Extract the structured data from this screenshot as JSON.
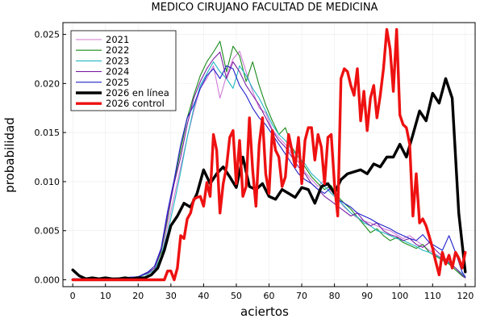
{
  "chart_data": {
    "type": "line",
    "title": "MEDICO CIRUJANO  FACULTAD DE MEDICINA",
    "xlabel": "aciertos",
    "ylabel": "probabilidad",
    "xlim": [
      -3,
      123
    ],
    "ylim": [
      -0.0007,
      0.0262
    ],
    "xticks": [
      0,
      10,
      20,
      30,
      40,
      50,
      60,
      70,
      80,
      90,
      100,
      110,
      120
    ],
    "yticks": [
      0.0,
      0.005,
      0.01,
      0.015,
      0.02,
      0.025
    ],
    "ytick_labels": [
      "0.000",
      "0.005",
      "0.010",
      "0.015",
      "0.020",
      "0.025"
    ],
    "grid": true,
    "legend_position": "top-left",
    "series": [
      {
        "name": "2021",
        "color": "#d07ad6",
        "width": 1.1,
        "x": [
          0,
          5,
          10,
          15,
          20,
          23,
          25,
          27,
          29,
          31,
          33,
          35,
          37,
          39,
          41,
          43,
          45,
          47,
          49,
          51,
          53,
          55,
          57,
          59,
          61,
          63,
          65,
          67,
          69,
          71,
          73,
          75,
          77,
          79,
          81,
          83,
          85,
          87,
          89,
          91,
          93,
          95,
          97,
          99,
          101,
          103,
          105,
          107,
          109,
          111,
          113,
          115,
          117,
          119,
          120
        ],
        "y": [
          0.0001,
          0.0001,
          0.0001,
          0.0002,
          0.0003,
          0.0006,
          0.001,
          0.0022,
          0.0055,
          0.0085,
          0.0115,
          0.0145,
          0.0172,
          0.0195,
          0.0205,
          0.0218,
          0.0185,
          0.0208,
          0.0225,
          0.0233,
          0.0212,
          0.0192,
          0.0175,
          0.017,
          0.0153,
          0.0145,
          0.0138,
          0.0128,
          0.012,
          0.011,
          0.0102,
          0.0095,
          0.0102,
          0.0088,
          0.0082,
          0.0074,
          0.0068,
          0.0063,
          0.006,
          0.0058,
          0.0055,
          0.0052,
          0.005,
          0.0046,
          0.0042,
          0.0045,
          0.004,
          0.0035,
          0.003,
          0.0026,
          0.0022,
          0.0018,
          0.0012,
          0.0006,
          0.0003
        ]
      },
      {
        "name": "2022",
        "color": "#1a8a1a",
        "width": 1.1,
        "x": [
          0,
          5,
          10,
          15,
          20,
          23,
          25,
          27,
          29,
          31,
          33,
          35,
          37,
          39,
          41,
          43,
          45,
          47,
          49,
          51,
          53,
          55,
          57,
          59,
          61,
          63,
          65,
          67,
          69,
          71,
          73,
          75,
          77,
          79,
          81,
          83,
          85,
          87,
          89,
          91,
          93,
          95,
          97,
          99,
          101,
          103,
          105,
          107,
          109,
          111,
          113,
          115,
          117,
          119,
          120
        ],
        "y": [
          0.0001,
          0.0001,
          0.0001,
          0.0002,
          0.0003,
          0.0007,
          0.0012,
          0.0028,
          0.0062,
          0.01,
          0.0132,
          0.0165,
          0.0188,
          0.0208,
          0.0222,
          0.0232,
          0.0243,
          0.0212,
          0.0238,
          0.0228,
          0.0202,
          0.0222,
          0.0198,
          0.0178,
          0.0162,
          0.0148,
          0.0155,
          0.0135,
          0.0125,
          0.0115,
          0.0105,
          0.0098,
          0.0092,
          0.0096,
          0.0085,
          0.0078,
          0.0072,
          0.0064,
          0.0056,
          0.0048,
          0.0052,
          0.0045,
          0.004,
          0.0043,
          0.0038,
          0.0035,
          0.0032,
          0.0036,
          0.0028,
          0.0024,
          0.002,
          0.0016,
          0.001,
          0.0004,
          0.0002
        ]
      },
      {
        "name": "2023",
        "color": "#22b7c2",
        "width": 1.1,
        "x": [
          0,
          5,
          10,
          15,
          20,
          23,
          25,
          27,
          29,
          31,
          33,
          35,
          37,
          39,
          41,
          43,
          45,
          47,
          49,
          51,
          53,
          55,
          57,
          59,
          61,
          63,
          65,
          67,
          69,
          71,
          73,
          75,
          77,
          79,
          81,
          83,
          85,
          87,
          89,
          91,
          93,
          95,
          97,
          99,
          101,
          103,
          105,
          107,
          109,
          111,
          113,
          115,
          117,
          119,
          120
        ],
        "y": [
          0.0001,
          0.0001,
          0.0001,
          0.0002,
          0.0003,
          0.0006,
          0.001,
          0.0024,
          0.0048,
          0.0078,
          0.011,
          0.0145,
          0.0175,
          0.0198,
          0.021,
          0.0222,
          0.0212,
          0.0205,
          0.0195,
          0.0218,
          0.0208,
          0.0195,
          0.0185,
          0.0172,
          0.0158,
          0.0148,
          0.0142,
          0.0132,
          0.0125,
          0.0118,
          0.0108,
          0.0102,
          0.0095,
          0.0088,
          0.0082,
          0.0075,
          0.0068,
          0.0064,
          0.0058,
          0.0055,
          0.005,
          0.0048,
          0.0045,
          0.0042,
          0.004,
          0.0037,
          0.0034,
          0.003,
          0.0028,
          0.0025,
          0.0021,
          0.0017,
          0.0012,
          0.0006,
          0.0003
        ]
      },
      {
        "name": "2024",
        "color": "#7b1fa2",
        "width": 1.1,
        "x": [
          0,
          5,
          10,
          15,
          20,
          23,
          25,
          27,
          29,
          31,
          33,
          35,
          37,
          39,
          41,
          43,
          45,
          47,
          49,
          51,
          53,
          55,
          57,
          59,
          61,
          63,
          65,
          67,
          69,
          71,
          73,
          75,
          77,
          79,
          81,
          83,
          85,
          87,
          89,
          91,
          93,
          95,
          97,
          99,
          101,
          103,
          105,
          107,
          109,
          111,
          113,
          115,
          117,
          119,
          120
        ],
        "y": [
          0.0001,
          0.0001,
          0.0001,
          0.0002,
          0.0003,
          0.0007,
          0.0012,
          0.003,
          0.0065,
          0.0098,
          0.0125,
          0.0158,
          0.0185,
          0.0202,
          0.0215,
          0.0225,
          0.0232,
          0.0205,
          0.0222,
          0.0212,
          0.0198,
          0.0188,
          0.0178,
          0.0165,
          0.0152,
          0.0142,
          0.0135,
          0.0125,
          0.0115,
          0.0108,
          0.0098,
          0.0092,
          0.0085,
          0.008,
          0.0075,
          0.007,
          0.0065,
          0.0068,
          0.006,
          0.0055,
          0.0058,
          0.005,
          0.0046,
          0.0044,
          0.004,
          0.0042,
          0.0036,
          0.0033,
          0.0038,
          0.003,
          0.0024,
          0.0018,
          0.0012,
          0.0005,
          0.0002
        ]
      },
      {
        "name": "2025",
        "color": "#1f1fc9",
        "width": 1.1,
        "x": [
          0,
          5,
          10,
          15,
          20,
          23,
          25,
          27,
          29,
          31,
          33,
          35,
          37,
          39,
          41,
          43,
          45,
          47,
          49,
          51,
          53,
          55,
          57,
          59,
          61,
          63,
          65,
          67,
          69,
          71,
          73,
          75,
          77,
          79,
          81,
          83,
          85,
          87,
          89,
          91,
          93,
          95,
          97,
          99,
          101,
          103,
          105,
          107,
          109,
          111,
          113,
          115,
          117,
          119,
          120
        ],
        "y": [
          0.0001,
          0.0001,
          0.0001,
          0.0002,
          0.0003,
          0.0008,
          0.0014,
          0.0032,
          0.007,
          0.0102,
          0.0138,
          0.0165,
          0.0178,
          0.0195,
          0.0208,
          0.0215,
          0.0205,
          0.0218,
          0.0215,
          0.0198,
          0.0188,
          0.0175,
          0.0165,
          0.0158,
          0.0148,
          0.0138,
          0.0128,
          0.0118,
          0.0108,
          0.0102,
          0.0098,
          0.0092,
          0.0088,
          0.0094,
          0.0082,
          0.0078,
          0.0074,
          0.0068,
          0.0065,
          0.0062,
          0.0058,
          0.0055,
          0.0052,
          0.0048,
          0.0045,
          0.0042,
          0.004,
          0.0046,
          0.0038,
          0.0034,
          0.003,
          0.0045,
          0.0028,
          0.0008,
          0.0003
        ]
      },
      {
        "name": "2026 en línea",
        "color": "#000000",
        "width": 3.4,
        "x": [
          0,
          2,
          4,
          6,
          8,
          10,
          12,
          14,
          16,
          18,
          20,
          22,
          24,
          26,
          28,
          30,
          32,
          34,
          36,
          38,
          40,
          42,
          44,
          46,
          48,
          50,
          52,
          54,
          56,
          58,
          60,
          62,
          64,
          66,
          68,
          70,
          72,
          74,
          76,
          78,
          80,
          82,
          84,
          86,
          88,
          90,
          92,
          94,
          96,
          98,
          100,
          102,
          104,
          106,
          108,
          110,
          112,
          114,
          116,
          118,
          120
        ],
        "y": [
          0.001,
          0.0004,
          0.0001,
          0.0002,
          0.0001,
          0.0002,
          0.0001,
          0.0001,
          0.0002,
          0.0001,
          0.0002,
          0.0002,
          0.0005,
          0.0012,
          0.003,
          0.0055,
          0.0065,
          0.0078,
          0.0074,
          0.0088,
          0.0112,
          0.0098,
          0.0108,
          0.0115,
          0.0105,
          0.0094,
          0.0125,
          0.0095,
          0.0092,
          0.0098,
          0.0085,
          0.0082,
          0.0092,
          0.0088,
          0.0084,
          0.0094,
          0.0092,
          0.0078,
          0.0095,
          0.0098,
          0.0088,
          0.0102,
          0.0108,
          0.011,
          0.0112,
          0.0108,
          0.0118,
          0.0115,
          0.0125,
          0.0125,
          0.0138,
          0.0125,
          0.0148,
          0.0172,
          0.0162,
          0.019,
          0.018,
          0.0205,
          0.0185,
          0.0068,
          0.0008
        ]
      },
      {
        "name": "2026 control",
        "color": "#ee1111",
        "width": 3.4,
        "x": [
          0,
          5,
          10,
          15,
          20,
          25,
          27,
          28,
          29,
          30,
          31,
          32,
          33,
          34,
          35,
          36,
          37,
          38,
          39,
          40,
          41,
          42,
          43,
          44,
          45,
          46,
          47,
          48,
          49,
          50,
          51,
          52,
          53,
          54,
          55,
          56,
          57,
          58,
          59,
          60,
          61,
          62,
          63,
          64,
          65,
          66,
          67,
          68,
          69,
          70,
          71,
          72,
          73,
          74,
          75,
          76,
          77,
          78,
          79,
          80,
          81,
          82,
          83,
          84,
          85,
          86,
          87,
          88,
          89,
          90,
          91,
          92,
          93,
          94,
          95,
          96,
          97,
          98,
          99,
          100,
          101,
          102,
          103,
          104,
          105,
          106,
          107,
          108,
          109,
          110,
          111,
          112,
          113,
          114,
          115,
          116,
          117,
          118,
          119,
          120
        ],
        "y": [
          0,
          0,
          0,
          0,
          0,
          0,
          0,
          0,
          0.0009,
          0.0009,
          0,
          0.0012,
          0.0045,
          0.0042,
          0.0062,
          0.0068,
          0.0082,
          0.0084,
          0.0085,
          0.0075,
          0.0099,
          0.0085,
          0.0148,
          0.0132,
          0.0068,
          0.0098,
          0.0115,
          0.0145,
          0.0152,
          0.0098,
          0.0142,
          0.0085,
          0.0095,
          0.0165,
          0.0112,
          0.0075,
          0.0138,
          0.0165,
          0.0108,
          0.0088,
          0.0152,
          0.0132,
          0.0125,
          0.0095,
          0.0105,
          0.0148,
          0.0132,
          0.0115,
          0.0145,
          0.0098,
          0.0142,
          0.0155,
          0.0155,
          0.0122,
          0.0148,
          0.0135,
          0.0098,
          0.0145,
          0.0148,
          0.0098,
          0.0065,
          0.0205,
          0.0215,
          0.0212,
          0.0198,
          0.0188,
          0.0215,
          0.0162,
          0.0192,
          0.0152,
          0.0185,
          0.0198,
          0.0165,
          0.0188,
          0.0215,
          0.0255,
          0.0235,
          0.0192,
          0.0255,
          0.0168,
          0.0158,
          0.0155,
          0.0138,
          0.0065,
          0.0108,
          0.0058,
          0.0062,
          0.0055,
          0.0044,
          0.0032,
          0.0018,
          0.0005,
          0.0028,
          0.0016,
          0.0025,
          0.0012,
          0.0028,
          0.0022,
          0.0012,
          0.0028
        ]
      }
    ]
  }
}
